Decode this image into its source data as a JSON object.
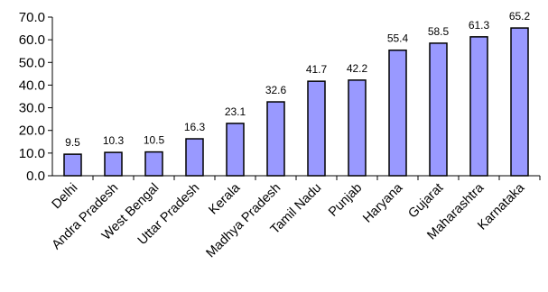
{
  "chart_data": {
    "type": "bar",
    "categories": [
      "Delhi",
      "Andra Pradesh",
      "West Bengal",
      "Uttar Pradesh",
      "Kerala",
      "Madhya Pradesh",
      "Tamil Nadu",
      "Punjab",
      "Haryana",
      "Gujarat",
      "Maharashtra",
      "Karnataka"
    ],
    "values": [
      9.5,
      10.3,
      10.5,
      16.3,
      23.1,
      32.6,
      41.7,
      42.2,
      55.4,
      58.5,
      61.3,
      65.2
    ],
    "value_labels": [
      "9.5",
      "10.3",
      "10.5",
      "16.3",
      "23.1",
      "32.6",
      "41.7",
      "42.2",
      "55.4",
      "58.5",
      "61.3",
      "65.2"
    ],
    "yticks": [
      "0.0",
      "10.0",
      "20.0",
      "30.0",
      "40.0",
      "50.0",
      "60.0",
      "70.0"
    ],
    "ylim": [
      0,
      70
    ],
    "grid": false,
    "legend": "none",
    "bar_color": "#9999ff",
    "bar_edge_color": "#000000"
  }
}
